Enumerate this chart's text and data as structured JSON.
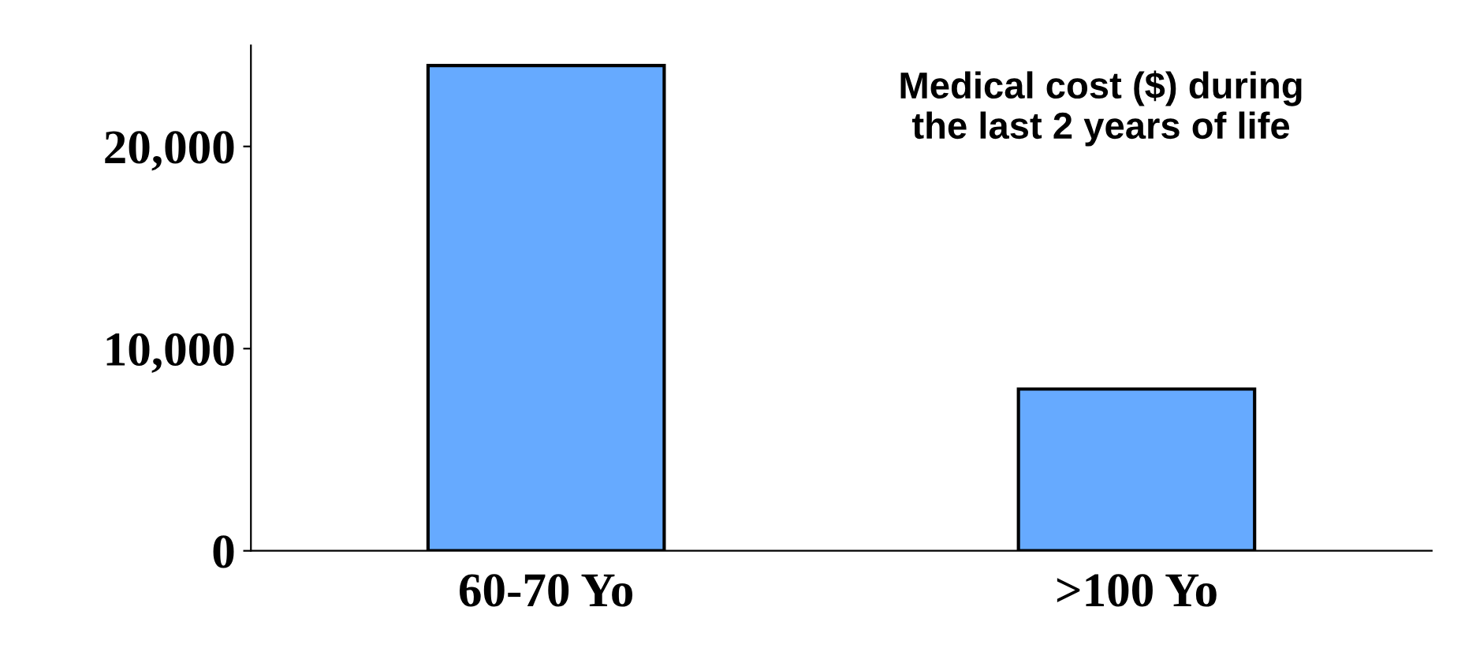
{
  "chart_data": {
    "type": "bar",
    "title": "Medical cost ($) during\nthe last 2 years of life",
    "categories": [
      "60-70 Yo",
      ">100 Yo"
    ],
    "values": [
      24000,
      8000
    ],
    "color": "#66aaff",
    "ylim": [
      0,
      25000
    ],
    "yticks": [
      {
        "value": 0,
        "label": "0"
      },
      {
        "value": 10000,
        "label": "10,000"
      },
      {
        "value": 20000,
        "label": "20,000"
      }
    ],
    "grid": false
  }
}
